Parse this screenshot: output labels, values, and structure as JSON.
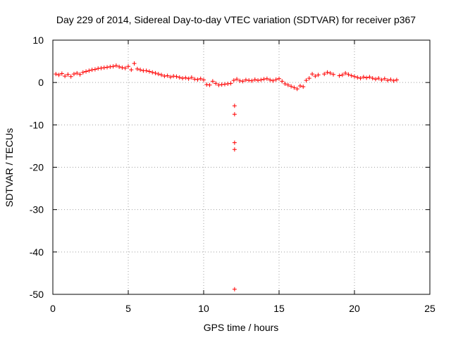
{
  "chart_data": {
    "type": "scatter",
    "title": "Day 229 of 2014, Sidereal Day-to-day VTEC variation (SDTVAR) for receiver p367",
    "xlabel": "GPS time / hours",
    "ylabel": "SDTVAR / TECUs",
    "xlim": [
      0,
      25
    ],
    "ylim": [
      -50,
      10
    ],
    "xticks": [
      "0",
      "5",
      "10",
      "15",
      "20",
      "25"
    ],
    "yticks": [
      "10",
      "0",
      "-10",
      "-20",
      "-30",
      "-40",
      "-50"
    ],
    "grid": true,
    "marker": "+",
    "color": "#ff0000",
    "series": [
      {
        "name": "SDTVAR",
        "x": [
          0.2,
          0.4,
          0.6,
          0.8,
          1.0,
          1.2,
          1.4,
          1.6,
          1.8,
          2.0,
          2.2,
          2.4,
          2.6,
          2.8,
          3.0,
          3.2,
          3.4,
          3.6,
          3.8,
          4.0,
          4.2,
          4.4,
          4.6,
          4.8,
          5.0,
          5.2,
          5.4,
          5.6,
          5.8,
          6.0,
          6.2,
          6.4,
          6.6,
          6.8,
          7.0,
          7.2,
          7.4,
          7.6,
          7.8,
          8.0,
          8.2,
          8.4,
          8.6,
          8.8,
          9.0,
          9.2,
          9.4,
          9.6,
          9.8,
          10.0,
          10.2,
          10.4,
          10.6,
          10.8,
          11.0,
          11.2,
          11.4,
          11.6,
          11.8,
          12.0,
          12.2,
          12.4,
          12.6,
          12.8,
          13.0,
          13.2,
          13.4,
          13.6,
          13.8,
          14.0,
          14.2,
          14.4,
          14.6,
          14.8,
          15.0,
          15.2,
          15.4,
          15.6,
          15.8,
          16.0,
          16.2,
          16.4,
          16.6,
          16.8,
          17.0,
          17.2,
          17.4,
          17.6,
          18.0,
          18.2,
          18.4,
          18.6,
          19.0,
          19.2,
          19.4,
          19.6,
          19.8,
          20.0,
          20.2,
          20.4,
          20.6,
          20.8,
          21.0,
          21.2,
          21.4,
          21.6,
          21.8,
          22.0,
          22.2,
          22.4,
          22.6,
          22.8,
          12.05,
          12.05,
          12.05,
          12.05,
          12.05
        ],
        "y": [
          2.0,
          1.8,
          2.1,
          1.5,
          1.9,
          1.4,
          2.0,
          2.2,
          1.9,
          2.4,
          2.6,
          2.8,
          3.0,
          3.1,
          3.3,
          3.4,
          3.5,
          3.6,
          3.7,
          3.8,
          4.0,
          3.7,
          3.5,
          3.4,
          3.8,
          3.0,
          4.5,
          3.2,
          3.0,
          2.8,
          2.8,
          2.6,
          2.4,
          2.2,
          2.0,
          1.8,
          1.5,
          1.6,
          1.3,
          1.5,
          1.4,
          1.2,
          1.0,
          1.1,
          0.9,
          1.2,
          0.8,
          0.7,
          0.9,
          0.6,
          -0.5,
          -0.6,
          0.3,
          -0.2,
          -0.6,
          -0.5,
          -0.4,
          -0.3,
          -0.2,
          0.5,
          0.8,
          0.4,
          0.3,
          0.6,
          0.5,
          0.4,
          0.7,
          0.5,
          0.6,
          0.8,
          0.9,
          0.6,
          0.4,
          0.7,
          0.9,
          0.3,
          -0.3,
          -0.6,
          -0.9,
          -1.2,
          -1.5,
          -0.8,
          -1.0,
          0.5,
          1.0,
          2.0,
          1.5,
          1.8,
          2.0,
          2.4,
          2.2,
          1.9,
          1.6,
          1.8,
          2.2,
          1.9,
          1.6,
          1.4,
          1.2,
          1.0,
          1.3,
          1.1,
          1.3,
          1.0,
          0.8,
          1.0,
          0.6,
          0.9,
          0.5,
          0.7,
          0.4,
          0.6,
          -5.5,
          -7.5,
          -14.2,
          -15.8,
          -48.8
        ]
      }
    ]
  }
}
